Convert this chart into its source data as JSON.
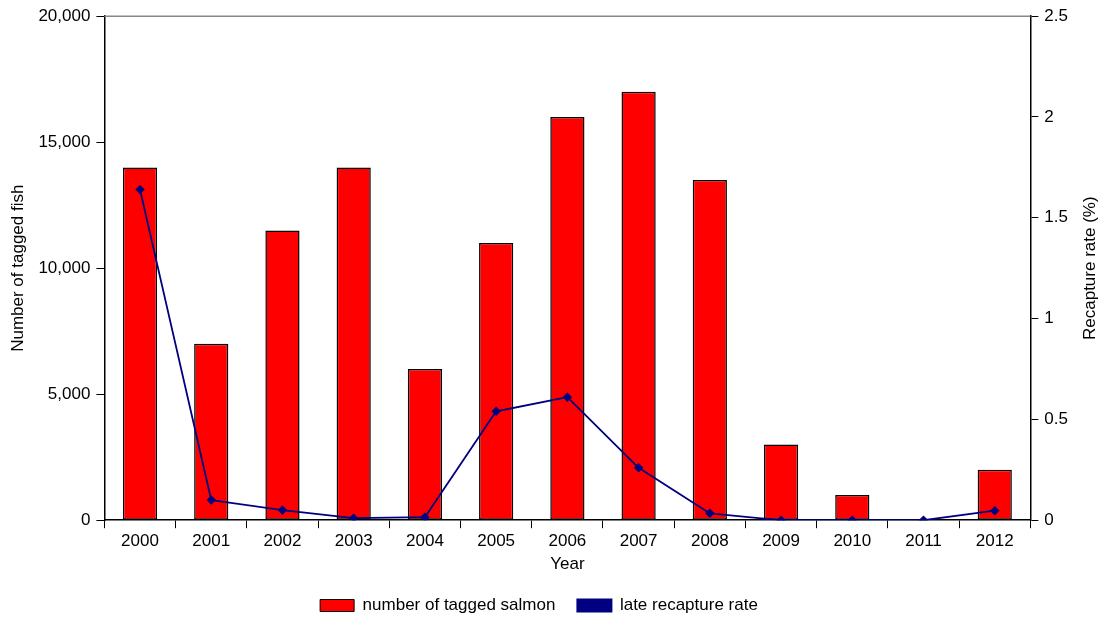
{
  "chart_data": {
    "type": "bar",
    "xlabel": "Year",
    "ylabel": "Number of tagged fish",
    "y2label": "Recapture rate (%)",
    "categories": [
      "2000",
      "2001",
      "2002",
      "2003",
      "2004",
      "2005",
      "2006",
      "2007",
      "2008",
      "2009",
      "2010",
      "2011",
      "2012"
    ],
    "series": [
      {
        "name": "number of tagged salmon",
        "color": "#ff0000",
        "values": [
          14000,
          7000,
          11500,
          14000,
          6000,
          11000,
          16000,
          17000,
          13500,
          3000,
          1000,
          0,
          2000
        ]
      },
      {
        "name": "late recapture rate",
        "type": "line",
        "axis": "y2",
        "color": "#000080",
        "values": [
          1.64,
          0.1,
          0.05,
          0.01,
          0.015,
          0.54,
          0.61,
          0.26,
          0.034,
          0,
          0,
          0,
          0.047
        ]
      }
    ],
    "ylim": [
      0,
      20000
    ],
    "yticks": [
      0,
      {
        "value": 5000,
        "label": "5,000"
      },
      {
        "value": 10000,
        "label": "10,000"
      },
      {
        "value": 15000,
        "label": "15,000"
      },
      {
        "value": 20000,
        "label": "20,000"
      }
    ],
    "y2lim": [
      0,
      2.5
    ],
    "y2ticks": [
      0,
      0.5,
      1,
      1.5,
      2,
      2.5
    ],
    "grid": false,
    "legend": "bottom",
    "marker": "diamond",
    "line_style": "solid"
  }
}
